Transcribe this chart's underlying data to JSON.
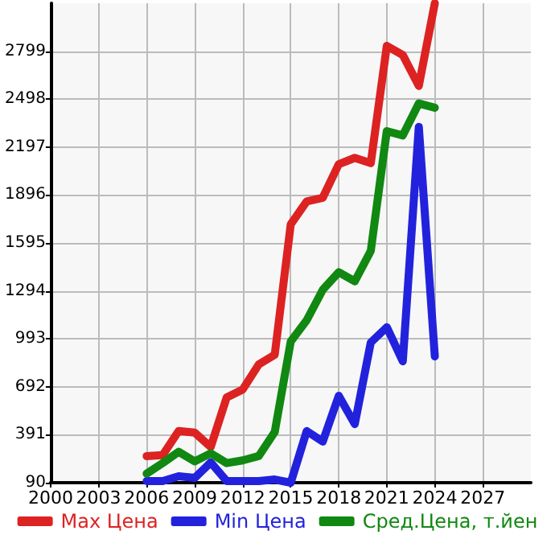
{
  "chart_data": {
    "type": "line",
    "x": [
      2006,
      2007,
      2008,
      2009,
      2010,
      2011,
      2012,
      2013,
      2014,
      2015,
      2016,
      2017,
      2018,
      2019,
      2020,
      2021,
      2022,
      2023,
      2024
    ],
    "series": [
      {
        "name": "Max Цена",
        "color": "#dd2222",
        "values": [
          257,
          263,
          414,
          404,
          314,
          625,
          675,
          832,
          893,
          1712,
          1856,
          1879,
          2089,
          2129,
          2096,
          2832,
          2775,
          2581,
          3100
        ]
      },
      {
        "name": "Min Цена",
        "color": "#2222dd",
        "values": [
          100,
          100,
          130,
          120,
          217,
          100,
          100,
          100,
          110,
          90,
          414,
          348,
          635,
          458,
          970,
          1066,
          852,
          2324,
          883
        ]
      },
      {
        "name": "Сред.Цена, т.йен",
        "color": "#118811",
        "values": [
          147,
          213,
          284,
          224,
          274,
          213,
          230,
          257,
          408,
          976,
          1110,
          1301,
          1411,
          1354,
          1545,
          2297,
          2270,
          2471,
          2444
        ]
      }
    ],
    "xlim": [
      2000,
      2030
    ],
    "xticks": [
      2000,
      2003,
      2006,
      2009,
      2012,
      2015,
      2018,
      2021,
      2024,
      2027
    ],
    "ylim": [
      90,
      3100
    ],
    "yticks": [
      90,
      391,
      692,
      993,
      1294,
      1595,
      1896,
      2197,
      2498,
      2799
    ],
    "grid": true,
    "legend": "bottom",
    "marker": "none",
    "line_style": "solid"
  }
}
